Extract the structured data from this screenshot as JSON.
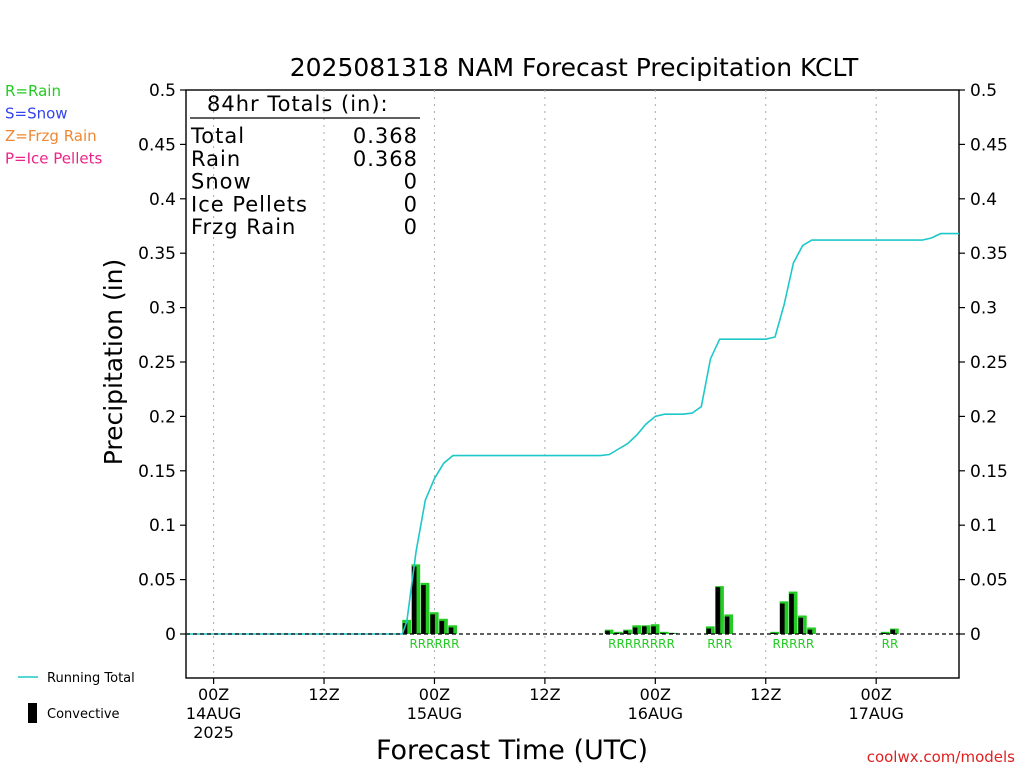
{
  "chart_data": {
    "type": "bar",
    "title": "2025081318 NAM Forecast Precipitation KCLT",
    "xlabel": "Forecast Time (UTC)",
    "ylabel": "Precipitation (in)",
    "ylim": [
      0,
      0.5
    ],
    "yticks": [
      "0",
      "0.05",
      "0.1",
      "0.15",
      "0.2",
      "0.25",
      "0.3",
      "0.35",
      "0.4",
      "0.45",
      "0.5"
    ],
    "y2ticks": [
      "0",
      "0.05",
      "0.1",
      "0.15",
      "0.2",
      "0.25",
      "0.3",
      "0.35",
      "0.4",
      "0.45",
      "0.5"
    ],
    "x_unit": "forecast hour",
    "xlim": [
      3,
      87
    ],
    "xticks": [
      {
        "hour": 6,
        "lines": [
          "00Z",
          "14AUG",
          "2025"
        ]
      },
      {
        "hour": 18,
        "lines": [
          "12Z"
        ]
      },
      {
        "hour": 30,
        "lines": [
          "00Z",
          "15AUG"
        ]
      },
      {
        "hour": 42,
        "lines": [
          "12Z"
        ]
      },
      {
        "hour": 54,
        "lines": [
          "00Z",
          "16AUG"
        ]
      },
      {
        "hour": 66,
        "lines": [
          "12Z"
        ]
      },
      {
        "hour": 78,
        "lines": [
          "00Z",
          "17AUG"
        ]
      }
    ],
    "grid": "vertical dotted",
    "ptype_legend": [
      {
        "label": "R=Rain",
        "color": "#22cc22"
      },
      {
        "label": "S=Snow",
        "color": "#3344ee"
      },
      {
        "label": "Z=Frzg Rain",
        "color": "#ee8833"
      },
      {
        "label": "P=Ice Pellets",
        "color": "#ee2288"
      }
    ],
    "series_legend": [
      {
        "label": "Running Total",
        "color": "#1fc8c8"
      },
      {
        "label": "Convective",
        "color": "#000000"
      }
    ],
    "totals_box": {
      "header": "84hr Totals (in):",
      "rows": [
        {
          "label": "Total",
          "value": "0.368"
        },
        {
          "label": "Rain",
          "value": "0.368"
        },
        {
          "label": "Snow",
          "value": "0"
        },
        {
          "label": "Ice Pellets",
          "value": "0"
        },
        {
          "label": "Frzg Rain",
          "value": "0"
        }
      ]
    },
    "series": [
      {
        "name": "Precipitation",
        "color": "#22cc22",
        "x": [
          27,
          28,
          29,
          30,
          31,
          32,
          49,
          50,
          51,
          52,
          53,
          54,
          55,
          56,
          60,
          61,
          62,
          67,
          68,
          69,
          70,
          71,
          79,
          80
        ],
        "values": [
          0.013,
          0.064,
          0.047,
          0.02,
          0.014,
          0.008,
          0.004,
          0.002,
          0.004,
          0.008,
          0.008,
          0.009,
          0.002,
          0.001,
          0.007,
          0.044,
          0.018,
          0.002,
          0.03,
          0.039,
          0.017,
          0.006,
          0.002,
          0.005
        ]
      },
      {
        "name": "Convective",
        "color": "#000000",
        "x": [
          27,
          28,
          29,
          30,
          31,
          32,
          49,
          50,
          51,
          52,
          53,
          54,
          55,
          56,
          60,
          61,
          62,
          67,
          68,
          69,
          70,
          71,
          79,
          80
        ],
        "values": [
          0.01,
          0.062,
          0.045,
          0.018,
          0.012,
          0.006,
          0.003,
          0.001,
          0.003,
          0.006,
          0.007,
          0.007,
          0.001,
          0.001,
          0.005,
          0.043,
          0.016,
          0.001,
          0.028,
          0.037,
          0.015,
          0.004,
          0.001,
          0.004
        ]
      },
      {
        "name": "Running Total",
        "color": "#1fc8c8",
        "x": [
          3,
          24,
          25,
          26,
          26.5,
          27,
          28,
          29,
          30,
          31,
          32,
          33,
          48,
          49,
          50,
          51,
          52,
          53,
          54,
          55,
          56,
          57,
          58,
          59,
          60,
          61,
          62,
          63,
          64,
          65,
          66,
          67,
          68,
          69,
          70,
          71,
          72,
          73,
          74,
          75,
          76,
          77,
          78,
          79,
          80,
          81,
          82,
          83,
          84,
          85,
          86,
          87
        ],
        "values": [
          0,
          0,
          0,
          0,
          0,
          0.012,
          0.076,
          0.123,
          0.143,
          0.157,
          0.164,
          0.164,
          0.164,
          0.165,
          0.17,
          0.175,
          0.183,
          0.193,
          0.2,
          0.202,
          0.202,
          0.202,
          0.203,
          0.209,
          0.253,
          0.271,
          0.271,
          0.271,
          0.271,
          0.271,
          0.271,
          0.273,
          0.303,
          0.341,
          0.357,
          0.362,
          0.362,
          0.362,
          0.362,
          0.362,
          0.362,
          0.362,
          0.362,
          0.362,
          0.362,
          0.362,
          0.362,
          0.362,
          0.364,
          0.368,
          0.368,
          0.368
        ]
      }
    ],
    "ptype_markers": [
      {
        "hour": 30,
        "text": "RRRRRR"
      },
      {
        "hour": 52.5,
        "text": "RRRRRRRR"
      },
      {
        "hour": 61,
        "text": "RRR"
      },
      {
        "hour": 69,
        "text": "RRRRR"
      },
      {
        "hour": 79.5,
        "text": "RR"
      }
    ]
  },
  "credit": "coolwx.com/models"
}
